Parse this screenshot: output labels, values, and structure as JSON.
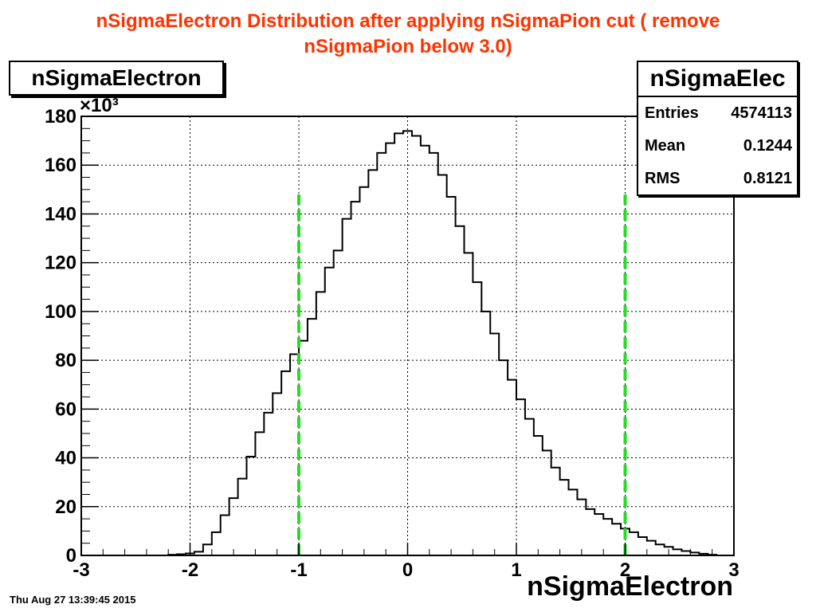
{
  "page_title": {
    "line1": "nSigmaElectron Distribution after applying nSigmaPion cut ( remove",
    "line2": "nSigmaPion below 3.0)"
  },
  "hist_name": "nSigmaElectron",
  "stats": {
    "title": "nSigmaElec",
    "rows": [
      {
        "label": "Entries",
        "value": "4574113"
      },
      {
        "label": "Mean",
        "value": "0.1244"
      },
      {
        "label": "RMS",
        "value": "0.8121"
      }
    ]
  },
  "x_axis_title": "nSigmaElectron",
  "y_multiplier": "×10³",
  "timestamp": "Thu Aug 27 13:39:45 2015",
  "chart_data": {
    "type": "bar",
    "histogram": true,
    "title": "nSigmaElectron",
    "xlabel": "nSigmaElectron",
    "ylabel": "",
    "xlim": [
      -3,
      3
    ],
    "ylim": [
      0,
      180
    ],
    "y_scale_note": "×10³",
    "grid": true,
    "x_ticks": [
      "-3",
      "-2",
      "-1",
      "0",
      "1",
      "2",
      "3"
    ],
    "y_ticks": [
      "0",
      "20",
      "40",
      "60",
      "80",
      "100",
      "120",
      "140",
      "160",
      "180"
    ],
    "bin_width": 0.08,
    "bins_low": [
      -2.2,
      -2.12,
      -2.04,
      -1.96,
      -1.88,
      -1.8,
      -1.72,
      -1.64,
      -1.56,
      -1.48,
      -1.4,
      -1.32,
      -1.24,
      -1.16,
      -1.08,
      -1.0,
      -0.92,
      -0.84,
      -0.76,
      -0.68,
      -0.6,
      -0.52,
      -0.44,
      -0.36,
      -0.28,
      -0.2,
      -0.12,
      -0.04,
      0.04,
      0.12,
      0.2,
      0.28,
      0.36,
      0.44,
      0.52,
      0.6,
      0.68,
      0.76,
      0.84,
      0.92,
      1.0,
      1.08,
      1.16,
      1.24,
      1.32,
      1.4,
      1.48,
      1.56,
      1.64,
      1.72,
      1.8,
      1.88,
      1.96,
      2.04,
      2.12,
      2.2,
      2.28,
      2.36,
      2.44,
      2.52,
      2.6,
      2.68,
      2.76
    ],
    "values": [
      0.3,
      0.5,
      0.8,
      1.5,
      4.5,
      9.5,
      16.5,
      23.5,
      31.5,
      40.5,
      50.5,
      58.5,
      66.5,
      75.5,
      82.5,
      88,
      97,
      108,
      118,
      125,
      138,
      145,
      151,
      158,
      165,
      169,
      173,
      174,
      172,
      168,
      165,
      156,
      147,
      135,
      124,
      112,
      100,
      91,
      80,
      72,
      64,
      56,
      49,
      43,
      36,
      31,
      27,
      23,
      19,
      17,
      15,
      13,
      11,
      9.5,
      7.5,
      6,
      4.5,
      3.5,
      2.5,
      1.8,
      1.2,
      0.7,
      0.3
    ],
    "markers": [
      {
        "x": -1.0,
        "y_top": 148,
        "color": "#22dd22",
        "style": "dashed"
      },
      {
        "x": 2.0,
        "y_top": 148,
        "color": "#22dd22",
        "style": "dashed"
      }
    ],
    "title_color": "#ff3300",
    "line_color": "#000000"
  }
}
